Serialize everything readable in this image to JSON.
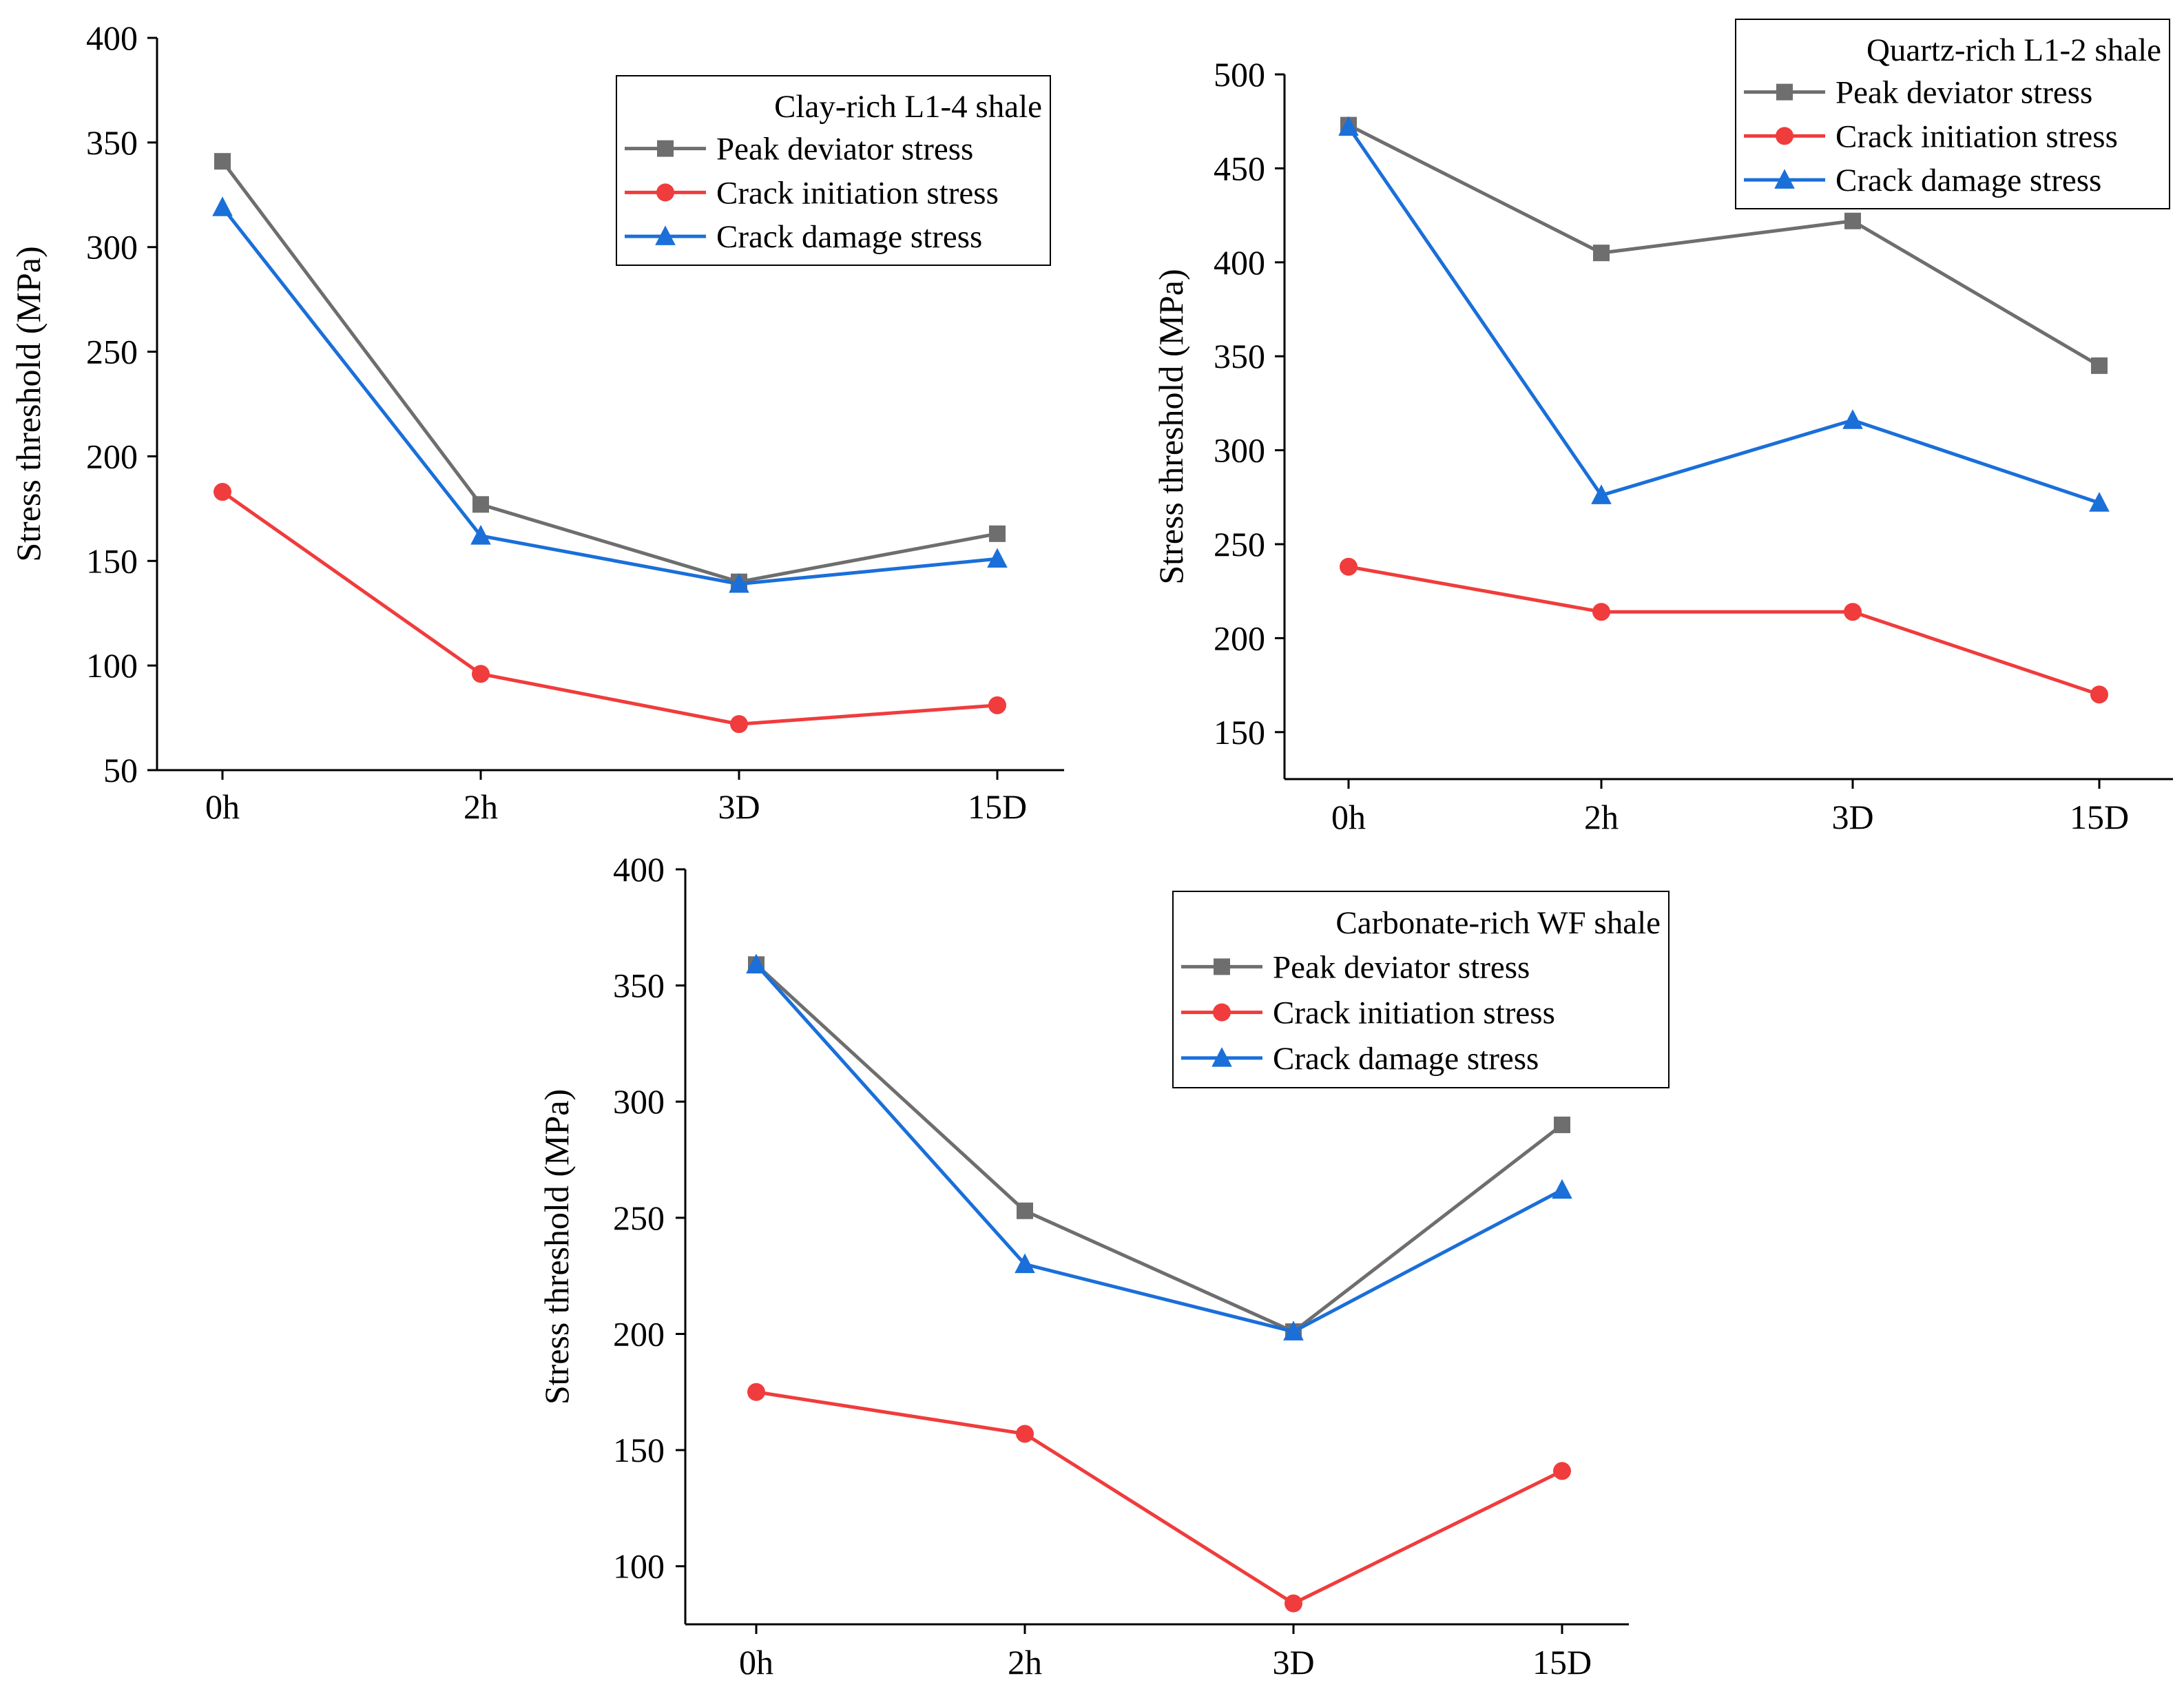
{
  "chart_data": [
    {
      "type": "line",
      "legend_title": "Clay-rich L1-4 shale",
      "categories": [
        "0h",
        "2h",
        "3D",
        "15D"
      ],
      "ylabel": "Stress threshold (MPa)",
      "xlabel": "",
      "ylim": [
        50,
        400
      ],
      "yticks": [
        50,
        100,
        150,
        200,
        250,
        300,
        350,
        400
      ],
      "ytick_labels": [
        "50",
        "100",
        "150",
        "200",
        "250",
        "300",
        "350",
        "400"
      ],
      "legend_position": "top-right",
      "series": [
        {
          "name": "Peak deviator stress",
          "color": "#6e6e6e",
          "marker": "square",
          "values": [
            341,
            177,
            140,
            163
          ]
        },
        {
          "name": "Crack initiation stress",
          "color": "#f03c3c",
          "marker": "circle",
          "values": [
            183,
            96,
            72,
            81
          ]
        },
        {
          "name": "Crack damage stress",
          "color": "#1a6fd9",
          "marker": "triangle",
          "values": [
            319,
            162,
            139,
            151
          ]
        }
      ]
    },
    {
      "type": "line",
      "legend_title": "Quartz-rich L1-2 shale",
      "categories": [
        "0h",
        "2h",
        "3D",
        "15D"
      ],
      "ylabel": "Stress threshold (MPa)",
      "xlabel": "",
      "ylim": [
        125,
        500
      ],
      "yticks": [
        150,
        200,
        250,
        300,
        350,
        400,
        450,
        500
      ],
      "ytick_labels": [
        "150",
        "200",
        "250",
        "300",
        "350",
        "400",
        "450",
        "500"
      ],
      "legend_position": "top-right",
      "series": [
        {
          "name": "Peak deviator stress",
          "color": "#6e6e6e",
          "marker": "square",
          "values": [
            473,
            405,
            422,
            345
          ]
        },
        {
          "name": "Crack initiation stress",
          "color": "#f03c3c",
          "marker": "circle",
          "values": [
            238,
            214,
            214,
            170
          ]
        },
        {
          "name": "Crack damage stress",
          "color": "#1a6fd9",
          "marker": "triangle",
          "values": [
            472,
            276,
            316,
            272
          ]
        }
      ]
    },
    {
      "type": "line",
      "legend_title": "Carbonate-rich WF shale",
      "categories": [
        "0h",
        "2h",
        "3D",
        "15D"
      ],
      "ylabel": "Stress threshold (MPa)",
      "xlabel": "",
      "ylim": [
        75,
        400
      ],
      "yticks": [
        100,
        150,
        200,
        250,
        300,
        350,
        400
      ],
      "ytick_labels": [
        "100",
        "150",
        "200",
        "250",
        "300",
        "350",
        "400"
      ],
      "legend_position": "top-right",
      "series": [
        {
          "name": "Peak deviator stress",
          "color": "#6e6e6e",
          "marker": "square",
          "values": [
            359,
            253,
            201,
            290
          ]
        },
        {
          "name": "Crack initiation stress",
          "color": "#f03c3c",
          "marker": "circle",
          "values": [
            175,
            157,
            84,
            141
          ]
        },
        {
          "name": "Crack damage stress",
          "color": "#1a6fd9",
          "marker": "triangle",
          "values": [
            359,
            230,
            201,
            262
          ]
        }
      ]
    }
  ]
}
